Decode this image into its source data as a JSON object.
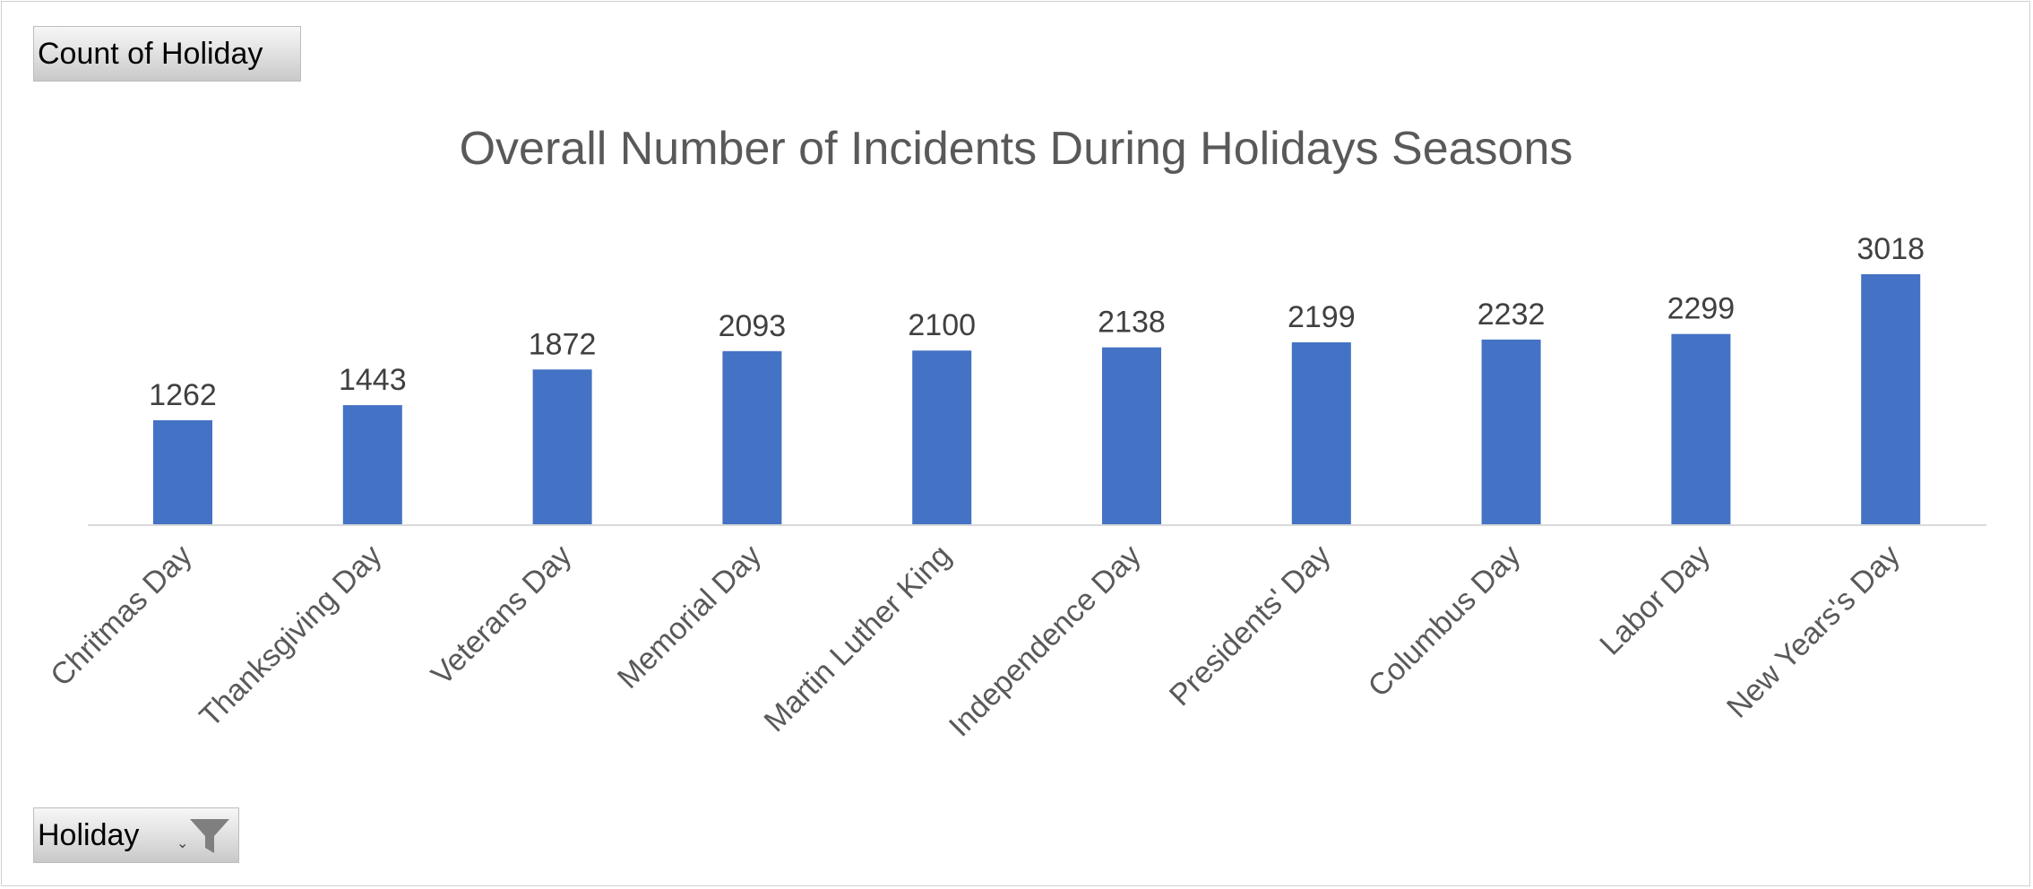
{
  "value_field_button": {
    "label": "Count of Holiday"
  },
  "axis_field_button": {
    "label": "Holiday",
    "dropdown_icon": "chevron-down-icon",
    "filter_icon": "funnel-filter-icon"
  },
  "colors": {
    "bar": "#4472c4",
    "axis_line": "#d9d9d9",
    "title": "#595959",
    "data_label": "#404040",
    "tick_label": "#595959"
  },
  "chart_data": {
    "type": "bar",
    "title": "Overall Number of Incidents During Holidays Seasons",
    "xlabel": "",
    "ylabel": "",
    "categories": [
      "Chritmas Day",
      "Thanksgiving Day",
      "Veterans Day",
      "Memorial Day",
      "Martin Luther King",
      "Independence Day",
      "Presidents' Day",
      "Columbus Day",
      "Labor Day",
      "New Years's Day"
    ],
    "values": [
      1262,
      1443,
      1872,
      2093,
      2100,
      2138,
      2199,
      2232,
      2299,
      3018
    ],
    "ylim": [
      0,
      3018
    ],
    "grid": false,
    "legend": "none",
    "data_labels": true
  }
}
